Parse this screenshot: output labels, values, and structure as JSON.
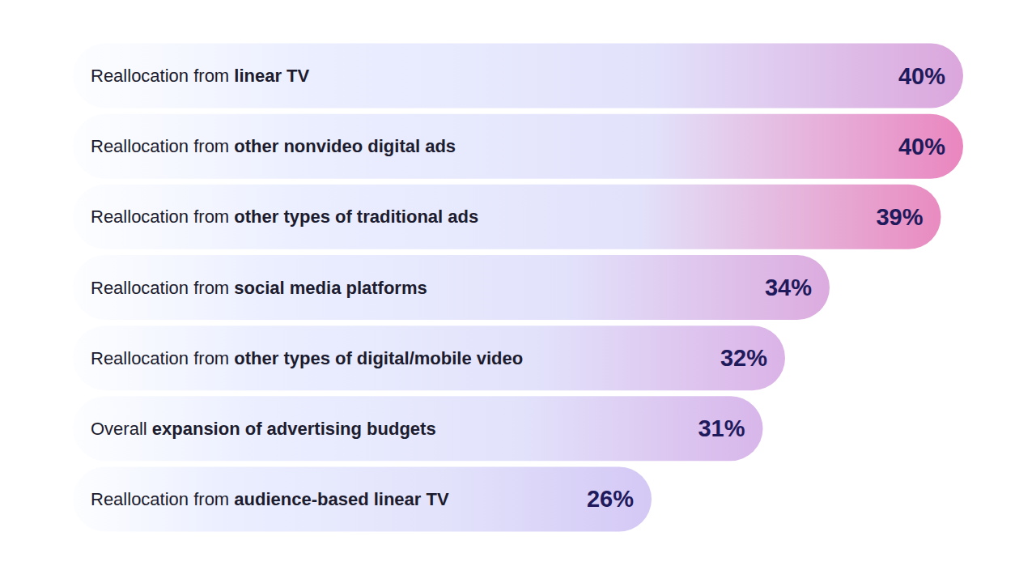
{
  "chart_data": {
    "type": "bar",
    "orientation": "horizontal",
    "categories": [
      "Reallocation from linear TV",
      "Reallocation from other nonvideo digital ads",
      "Reallocation from other types of traditional ads",
      "Reallocation from social media platforms",
      "Reallocation from other types of digital/mobile video",
      "Overall expansion of advertising budgets",
      "Reallocation from audience-based linear TV"
    ],
    "values": [
      40,
      40,
      39,
      34,
      32,
      31,
      26
    ],
    "value_labels": [
      "40%",
      "40%",
      "39%",
      "34%",
      "32%",
      "31%",
      "26%"
    ],
    "colors": [
      "#dba6dc",
      "#ea86bf",
      "#e98bc0",
      "#dcabdf",
      "#dbb3e7",
      "#d8b6ea",
      "#d4c8f5"
    ],
    "xlim": [
      0,
      40
    ],
    "data_labels": true,
    "tick_labels": false,
    "grid": false
  }
}
